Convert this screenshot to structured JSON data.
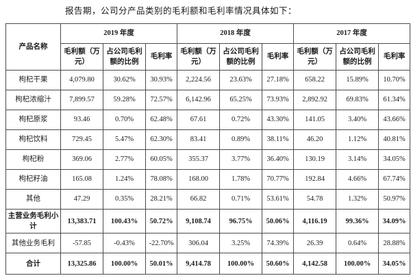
{
  "intro": "报告期，公司分产品类别的毛利额和毛利率情况具体如下：",
  "table": {
    "product_col_header": "产品名称",
    "year_groups": [
      "2019 年度",
      "2018 年度",
      "2017 年度"
    ],
    "sub_headers": [
      "毛利额（万元）",
      "占公司毛利额的比例",
      "毛利率"
    ],
    "rows": [
      {
        "name": "枸杞干果",
        "bold": false,
        "values": [
          "4,079.80",
          "30.62%",
          "30.93%",
          "2,224.56",
          "23.63%",
          "27.18%",
          "658.22",
          "15.89%",
          "10.70%"
        ]
      },
      {
        "name": "枸杞浓缩汁",
        "bold": false,
        "values": [
          "7,899.57",
          "59.28%",
          "72.57%",
          "6,142.96",
          "65.25%",
          "73.93%",
          "2,892.92",
          "69.83%",
          "61.34%"
        ]
      },
      {
        "name": "枸杞原浆",
        "bold": false,
        "values": [
          "93.46",
          "0.70%",
          "62.48%",
          "67.61",
          "0.72%",
          "43.30%",
          "141.05",
          "3.40%",
          "43.66%"
        ]
      },
      {
        "name": "枸杞饮料",
        "bold": false,
        "values": [
          "729.45",
          "5.47%",
          "62.30%",
          "83.41",
          "0.89%",
          "38.11%",
          "46.20",
          "1.12%",
          "40.81%"
        ]
      },
      {
        "name": "枸杞粉",
        "bold": false,
        "values": [
          "369.06",
          "2.77%",
          "60.05%",
          "355.37",
          "3.77%",
          "36.40%",
          "130.19",
          "3.14%",
          "34.05%"
        ]
      },
      {
        "name": "枸杞籽油",
        "bold": false,
        "values": [
          "165.08",
          "1.24%",
          "78.08%",
          "168.00",
          "1.78%",
          "70.77%",
          "192.84",
          "4.66%",
          "67.74%"
        ]
      },
      {
        "name": "其他",
        "bold": false,
        "values": [
          "47.29",
          "0.35%",
          "28.21%",
          "66.82",
          "0.71%",
          "53.61%",
          "54.78",
          "1.32%",
          "50.97%"
        ]
      },
      {
        "name": "主营业务毛利小计",
        "bold": true,
        "values": [
          "13,383.71",
          "100.43%",
          "50.72%",
          "9,108.74",
          "96.75%",
          "50.06%",
          "4,116.19",
          "99.36%",
          "34.09%"
        ]
      },
      {
        "name": "其他业务毛利",
        "bold": false,
        "values": [
          "-57.85",
          "-0.43%",
          "-22.70%",
          "306.04",
          "3.25%",
          "74.39%",
          "26.39",
          "0.64%",
          "28.88%"
        ]
      },
      {
        "name": "合计",
        "bold": true,
        "values": [
          "13,325.86",
          "100.00%",
          "50.01%",
          "9,414.78",
          "100.00%",
          "50.60%",
          "4,142.58",
          "100.00%",
          "34.05%"
        ]
      }
    ]
  }
}
